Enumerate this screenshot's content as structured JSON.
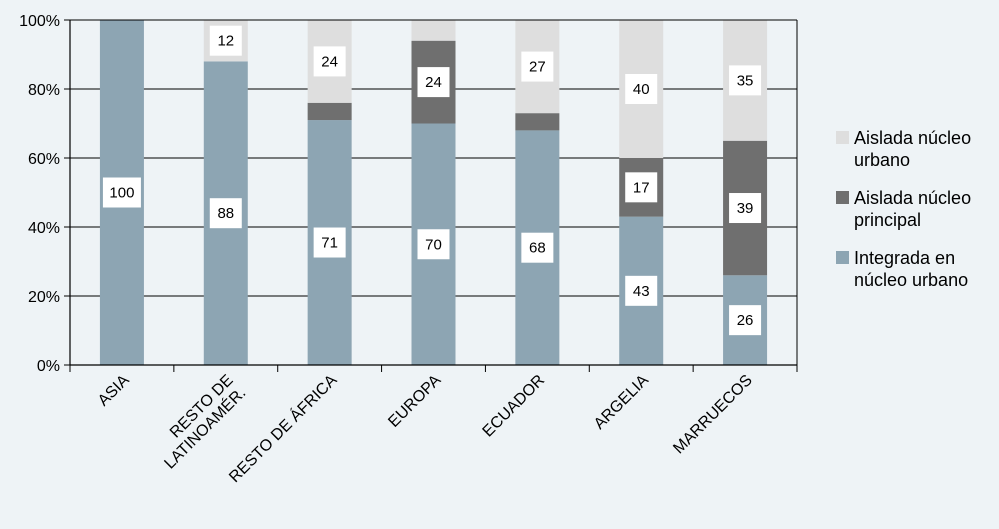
{
  "chart_data": {
    "type": "bar",
    "stacked": true,
    "title": "",
    "xlabel": "",
    "ylabel": "",
    "ylim": [
      0,
      100
    ],
    "y_tick_labels": [
      "0%",
      "20%",
      "40%",
      "60%",
      "80%",
      "100%"
    ],
    "y_ticks": [
      0,
      20,
      40,
      60,
      80,
      100
    ],
    "categories": [
      "ASIA",
      "RESTO DE LATINOAMÉR.",
      "RESTO DE ÁFRICA",
      "EUROPA",
      "ECUADOR",
      "ARGELIA",
      "MARRUECOS"
    ],
    "category_label_lines": [
      [
        "ASIA"
      ],
      [
        "RESTO DE",
        "LATINOAMÉR."
      ],
      [
        "RESTO DE ÁFRICA"
      ],
      [
        "EUROPA"
      ],
      [
        "ECUADOR"
      ],
      [
        "ARGELIA"
      ],
      [
        "MARRUECOS"
      ]
    ],
    "series": [
      {
        "name": "Integrada en núcleo urbano",
        "legend_lines": [
          "Integrada en",
          "núcleo urbano"
        ],
        "color": "#8da5b3",
        "values": [
          100,
          88,
          71,
          70,
          68,
          43,
          26
        ],
        "labels": [
          "100",
          "88",
          "71",
          "70",
          "68",
          "43",
          "26"
        ]
      },
      {
        "name": "Aislada núcleo principal",
        "legend_lines": [
          "Aislada núcleo",
          "principal"
        ],
        "color": "#6f6f6f",
        "values": [
          0,
          0,
          5,
          24,
          5,
          17,
          39
        ],
        "labels": [
          "",
          "",
          "",
          "24",
          "",
          "17",
          "39"
        ]
      },
      {
        "name": "Aislada núcleo urbano",
        "legend_lines": [
          "Aislada núcleo",
          "urbano"
        ],
        "color": "#dedede",
        "values": [
          0,
          12,
          24,
          6,
          27,
          40,
          35
        ],
        "labels": [
          "",
          "12",
          "24",
          "",
          "27",
          "40",
          "35"
        ]
      }
    ],
    "legend_position": "right",
    "grid": true,
    "background_color": "#eef3f6",
    "plot_background_color": "#eef3f6"
  }
}
